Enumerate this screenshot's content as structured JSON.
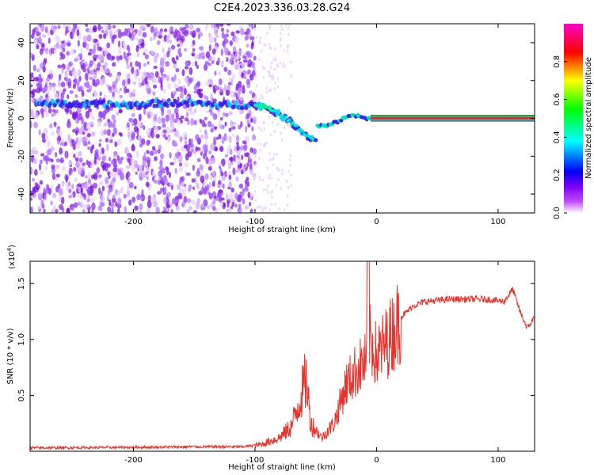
{
  "title": "C2E4.2023.336.03.28.G24",
  "chart_data": [
    {
      "type": "heatmap",
      "xlabel": "Height of straight line (km)",
      "ylabel": "Frequency (Hz)",
      "xlim": [
        -285,
        130
      ],
      "ylim": [
        -50,
        50
      ],
      "x_ticks": [
        -200,
        -100,
        0,
        100
      ],
      "y_ticks": [
        -40,
        -20,
        0,
        20,
        40
      ],
      "colorbar": {
        "label": "Normalized spectral amplitude",
        "range": [
          0.0,
          1.0
        ],
        "ticks": [
          "0.0",
          "0.2",
          "0.4",
          "0.6",
          "0.8"
        ],
        "colors": [
          "#ffffff",
          "#b100ff",
          "#0000ff",
          "#00ffff",
          "#00ff00",
          "#ffff00",
          "#ff0000",
          "#ff00c8"
        ]
      },
      "signal_track": [
        {
          "x": -280,
          "y": 8
        },
        {
          "x": -200,
          "y": 7
        },
        {
          "x": -180,
          "y": 8
        },
        {
          "x": -150,
          "y": 8
        },
        {
          "x": -130,
          "y": 7
        },
        {
          "x": -110,
          "y": 7
        },
        {
          "x": -100,
          "y": 7
        },
        {
          "x": -90,
          "y": 6
        },
        {
          "x": -80,
          "y": 2
        },
        {
          "x": -70,
          "y": -2
        },
        {
          "x": -60,
          "y": -8
        },
        {
          "x": -50,
          "y": -12
        },
        {
          "x": -50,
          "y": -4
        },
        {
          "x": -40,
          "y": -4
        },
        {
          "x": -30,
          "y": -1
        },
        {
          "x": -20,
          "y": 2
        },
        {
          "x": -10,
          "y": 0
        },
        {
          "x": 0,
          "y": 0
        },
        {
          "x": 130,
          "y": 0
        }
      ]
    },
    {
      "type": "line",
      "xlabel": "Height of straight line (km)",
      "ylabel": "SNR (10 * v/v)",
      "scale_label": "(x10",
      "scale_exponent": "4",
      "xlim": [
        -285,
        130
      ],
      "ylim": [
        0,
        1.7
      ],
      "x_ticks": [
        -200,
        -100,
        0,
        100
      ],
      "y_ticks": [
        0.5,
        1.0,
        1.5
      ],
      "y_tick_labels": [
        "0.5",
        "1.0",
        "1.5"
      ],
      "color": "#e8332b",
      "envelope": [
        {
          "x": -285,
          "y": 0.03
        },
        {
          "x": -200,
          "y": 0.035
        },
        {
          "x": -150,
          "y": 0.04
        },
        {
          "x": -110,
          "y": 0.04
        },
        {
          "x": -95,
          "y": 0.06
        },
        {
          "x": -80,
          "y": 0.12
        },
        {
          "x": -70,
          "y": 0.22
        },
        {
          "x": -62,
          "y": 0.5
        },
        {
          "x": -58,
          "y": 0.65
        },
        {
          "x": -54,
          "y": 0.25
        },
        {
          "x": -45,
          "y": 0.12
        },
        {
          "x": -35,
          "y": 0.25
        },
        {
          "x": -25,
          "y": 0.6
        },
        {
          "x": -15,
          "y": 0.75
        },
        {
          "x": -8,
          "y": 0.8
        },
        {
          "x": -5,
          "y": 1.0
        },
        {
          "x": 0,
          "y": 0.85
        },
        {
          "x": 10,
          "y": 1.0
        },
        {
          "x": 20,
          "y": 1.2
        },
        {
          "x": 30,
          "y": 1.3
        },
        {
          "x": 40,
          "y": 1.34
        },
        {
          "x": 60,
          "y": 1.36
        },
        {
          "x": 90,
          "y": 1.36
        },
        {
          "x": 105,
          "y": 1.34
        },
        {
          "x": 112,
          "y": 1.45
        },
        {
          "x": 118,
          "y": 1.25
        },
        {
          "x": 124,
          "y": 1.1
        },
        {
          "x": 130,
          "y": 1.2
        }
      ]
    }
  ]
}
